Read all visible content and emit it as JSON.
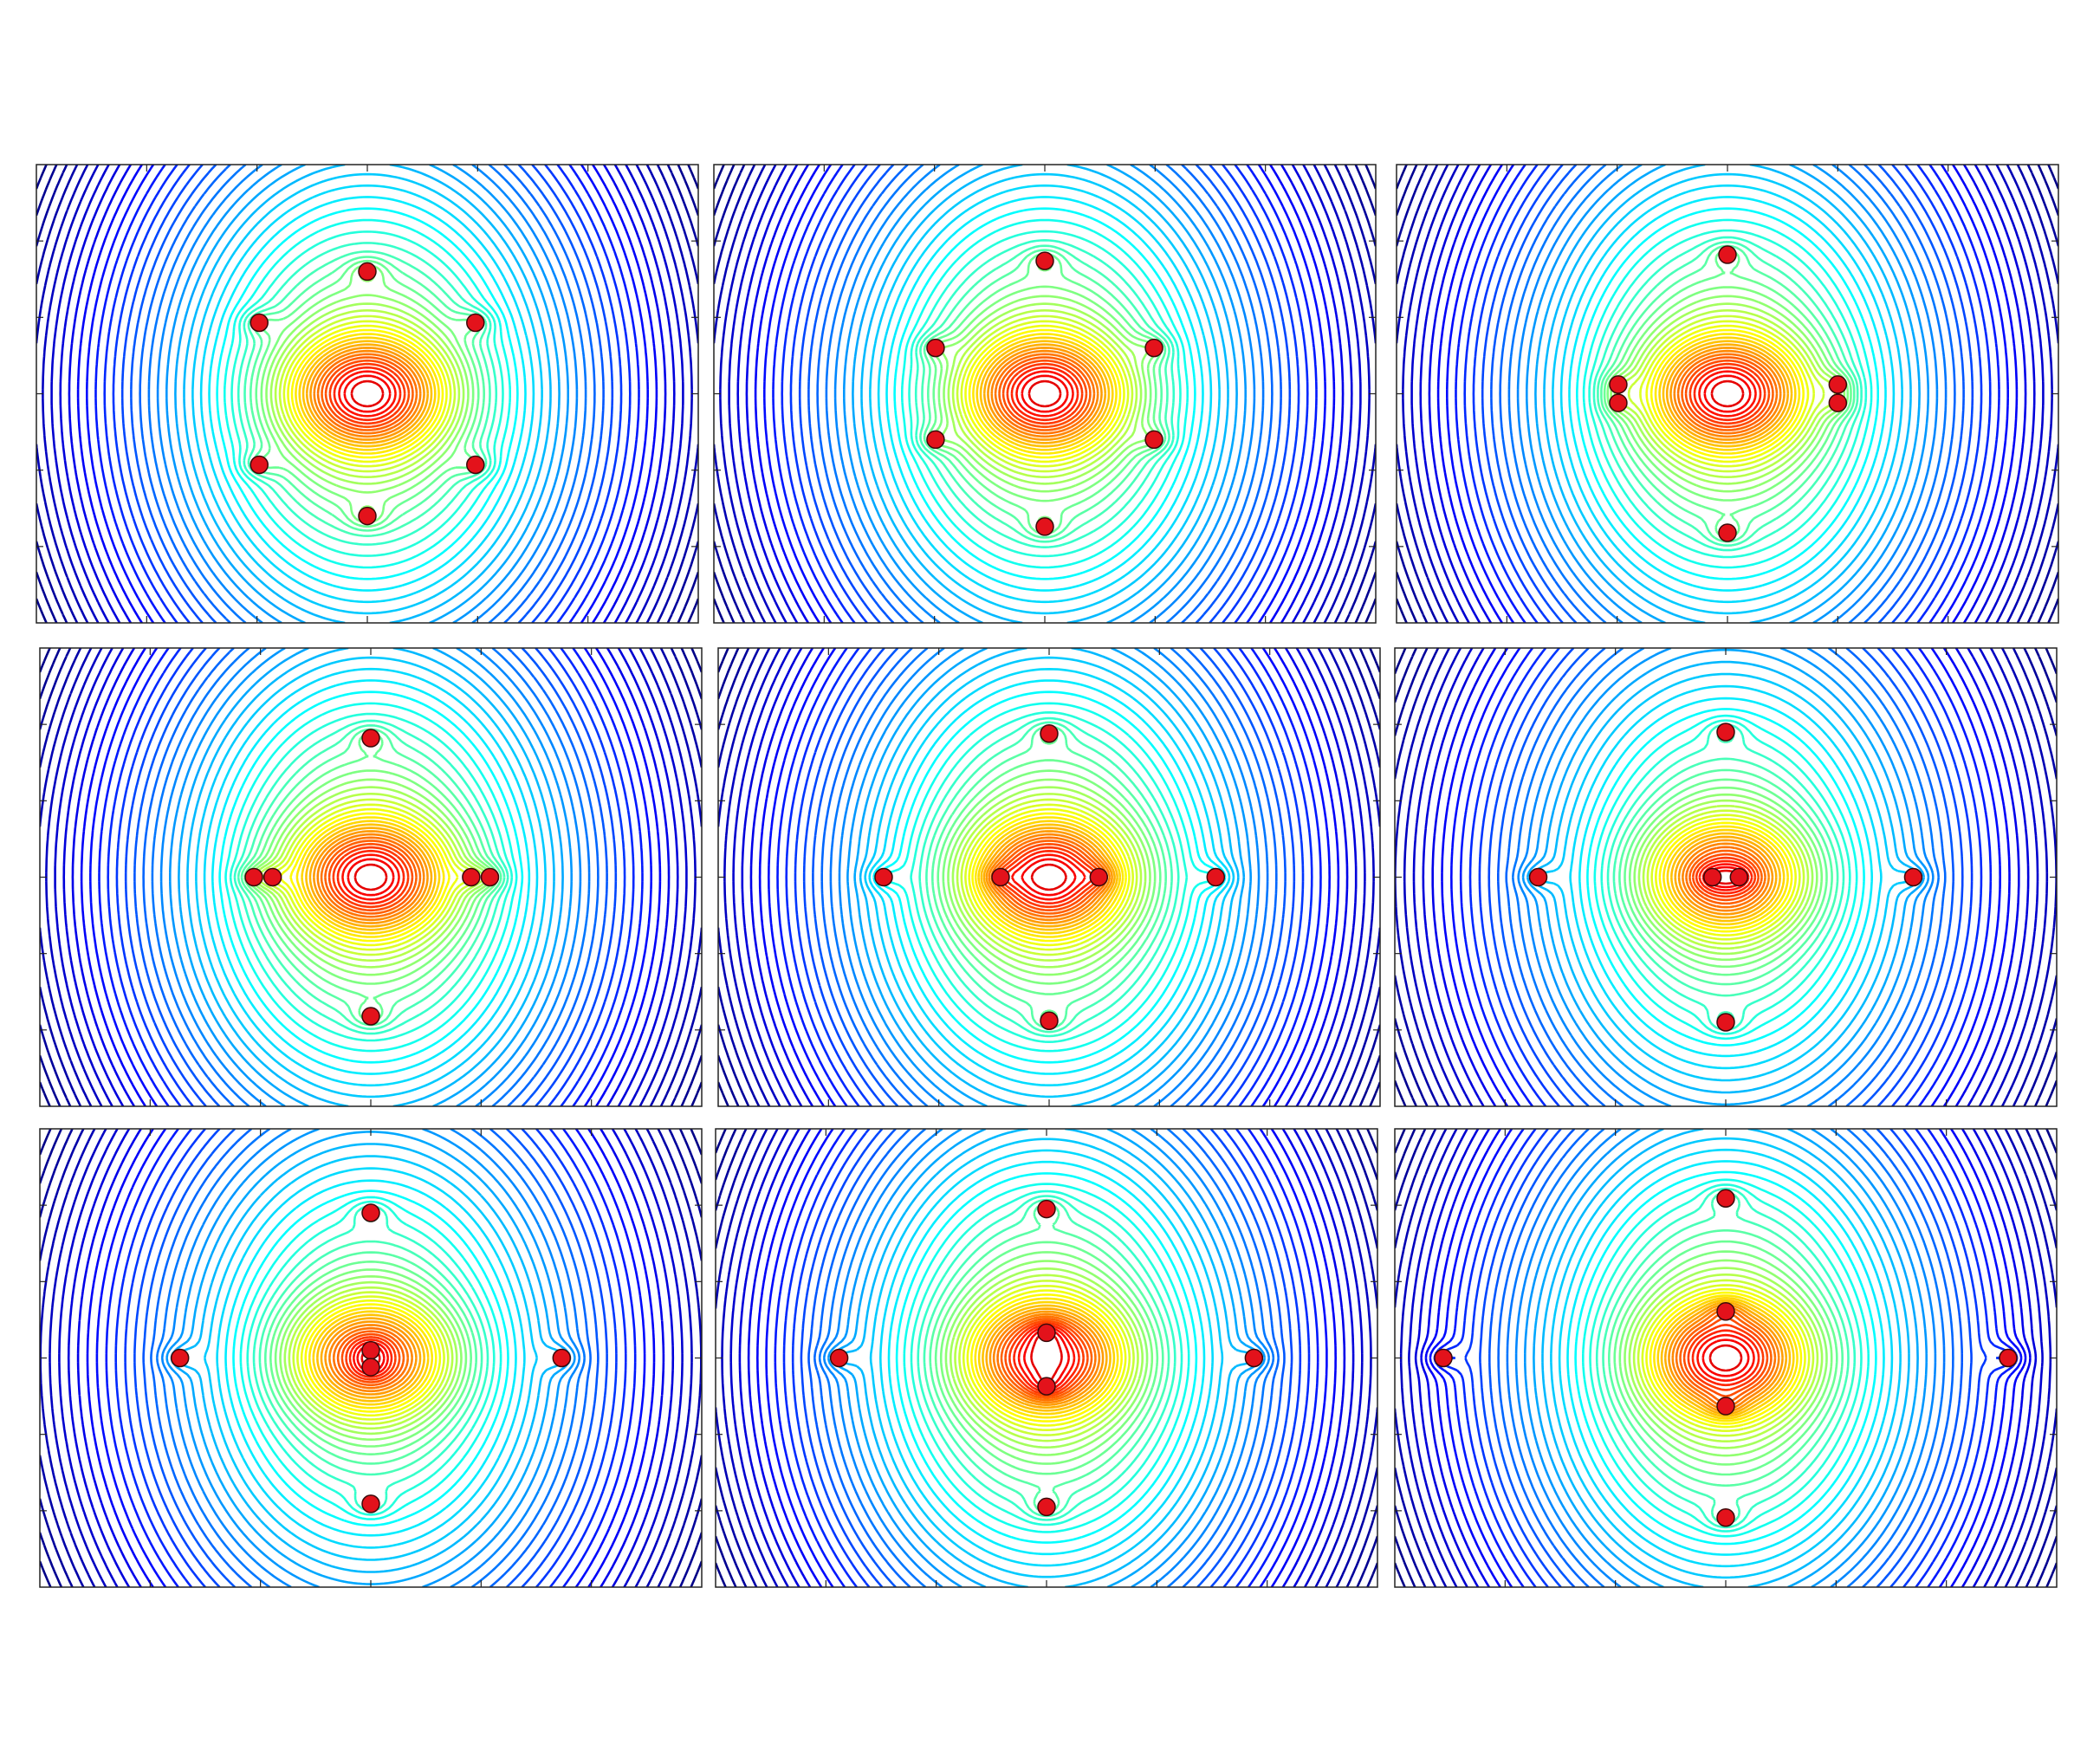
{
  "chart_data": [
    {
      "type": "scatter",
      "color": "#e3121b",
      "xlim": [
        -3,
        3
      ],
      "ylim": [
        -3,
        3
      ],
      "xticks": [
        -2,
        -1,
        0,
        1,
        2
      ],
      "yticks": [
        -2,
        -1,
        0,
        1,
        2
      ],
      "x": [
        0,
        -0.98,
        0.98,
        -0.98,
        0.98,
        0
      ],
      "y": [
        1.6,
        0.93,
        0.93,
        -0.93,
        -0.93,
        -1.6
      ]
    },
    {
      "type": "scatter",
      "color": "#e3121b",
      "xlim": [
        -3,
        3
      ],
      "ylim": [
        -3,
        3
      ],
      "xticks": [
        -2,
        -1,
        0,
        1,
        2
      ],
      "yticks": [
        -2,
        -1,
        0,
        1,
        2
      ],
      "x": [
        0,
        -0.99,
        0.99,
        -0.99,
        0.99,
        0
      ],
      "y": [
        1.74,
        0.6,
        0.6,
        -0.6,
        -0.6,
        -1.74
      ]
    },
    {
      "type": "scatter",
      "color": "#e3121b",
      "xlim": [
        -3,
        3
      ],
      "ylim": [
        -3,
        3
      ],
      "xticks": [
        -2,
        -1,
        0,
        1,
        2
      ],
      "yticks": [
        -2,
        -1,
        0,
        1,
        2
      ],
      "x": [
        0,
        -0.99,
        -0.99,
        1.0,
        1.0,
        0
      ],
      "y": [
        1.82,
        0.12,
        -0.12,
        0.12,
        -0.12,
        -1.82
      ]
    },
    {
      "type": "scatter",
      "color": "#e3121b",
      "xlim": [
        -3,
        3
      ],
      "ylim": [
        -3,
        3
      ],
      "xticks": [
        -2,
        -1,
        0,
        1,
        2
      ],
      "yticks": [
        -2,
        -1,
        0,
        1,
        2
      ],
      "x": [
        0,
        -1.06,
        -0.89,
        0.91,
        1.08,
        0
      ],
      "y": [
        1.82,
        0,
        0,
        0,
        0,
        -1.82
      ]
    },
    {
      "type": "scatter",
      "color": "#e3121b",
      "xlim": [
        -3,
        3
      ],
      "ylim": [
        -3,
        3
      ],
      "xticks": [
        -2,
        -1,
        0,
        1,
        2
      ],
      "yticks": [
        -2,
        -1,
        0,
        1,
        2
      ],
      "x": [
        0,
        -1.5,
        -0.44,
        0.45,
        1.51,
        0
      ],
      "y": [
        1.88,
        0,
        0,
        0,
        0,
        -1.88
      ]
    },
    {
      "type": "scatter",
      "color": "#e3121b",
      "xlim": [
        -3,
        3
      ],
      "ylim": [
        -3,
        3
      ],
      "xticks": [
        -2,
        -1,
        0,
        1,
        2
      ],
      "yticks": [
        -2,
        -1,
        0,
        1,
        2
      ],
      "x": [
        0,
        -1.7,
        -0.12,
        0.12,
        1.7,
        0
      ],
      "y": [
        1.9,
        0,
        0,
        0,
        0,
        -1.9
      ]
    },
    {
      "type": "scatter",
      "color": "#e3121b",
      "xlim": [
        -3,
        3
      ],
      "ylim": [
        -3,
        3
      ],
      "xticks": [
        -2,
        -1,
        0,
        1,
        2
      ],
      "yticks": [
        -2,
        -1,
        0,
        1,
        2
      ],
      "x": [
        0,
        -1.73,
        0,
        0,
        1.73,
        0
      ],
      "y": [
        1.9,
        0,
        0.1,
        -0.12,
        0,
        -1.91
      ]
    },
    {
      "type": "scatter",
      "color": "#e3121b",
      "xlim": [
        -3,
        3
      ],
      "ylim": [
        -3,
        3
      ],
      "xticks": [
        -2,
        -1,
        0,
        1,
        2
      ],
      "yticks": [
        -2,
        -1,
        0,
        1,
        2
      ],
      "x": [
        0,
        -1.88,
        0,
        0,
        1.88,
        0
      ],
      "y": [
        1.95,
        0,
        0.33,
        -0.37,
        0,
        -1.95
      ]
    },
    {
      "type": "scatter",
      "color": "#e3121b",
      "xlim": [
        -3,
        3
      ],
      "ylim": [
        -3,
        3
      ],
      "xticks": [
        -2,
        -1,
        0,
        1,
        2
      ],
      "yticks": [
        -2,
        -1,
        0,
        1,
        2
      ],
      "x": [
        0,
        -2.56,
        0,
        0,
        2.56,
        0
      ],
      "y": [
        2.09,
        0,
        0.61,
        -0.63,
        0,
        -2.09
      ]
    }
  ]
}
